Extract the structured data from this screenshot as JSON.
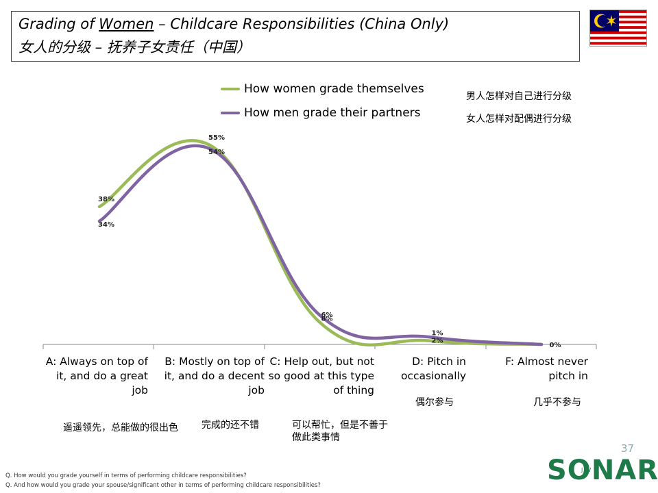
{
  "title": {
    "prefix": "Grading of ",
    "underlined": "Women",
    "suffix": " – Childcare Responsibilities (China Only)",
    "zh": "女人的分级 – 抚养子女责任（中国）"
  },
  "legend": [
    {
      "label": "How women grade themselves",
      "zh": "男人怎样对自己进行分级",
      "color": "#9bbb59"
    },
    {
      "label": "How men grade their partners",
      "zh": "女人怎样对配偶进行分级",
      "color": "#8064a2"
    }
  ],
  "category_zh": [
    "遥遥领先，总能做的很出色",
    "完成的还不错",
    "可以帮忙，但是不善于做此类事情",
    "偶尔参与",
    "几乎不参与"
  ],
  "chart_data": {
    "type": "line",
    "categories": [
      "A: Always on top of it, and do a great job",
      "B: Mostly on top of it, and do a decent job",
      "C: Help out, but not so good at this type of thing",
      "D: Pitch in occasionally",
      "F: Almost never pitch in"
    ],
    "series": [
      {
        "name": "How women grade themselves",
        "values": [
          38,
          55,
          6,
          1,
          0
        ],
        "labels": [
          "38%",
          "55%",
          "6%",
          "1%",
          "0%"
        ],
        "color": "#9bbb59"
      },
      {
        "name": "How men grade their partners",
        "values": [
          34,
          54,
          8,
          2,
          0
        ],
        "labels": [
          "34%",
          "54%",
          "8%",
          "2%",
          "0%"
        ],
        "color": "#8064a2"
      }
    ],
    "ylim": [
      0,
      58
    ]
  },
  "page_number": "37",
  "footnotes": [
    "Q. How would you grade yourself in terms of performing childcare responsibilities?",
    "Q. And how would you grade your spouse/significant other in terms of performing childcare responsibilities?"
  ],
  "logo": "SONAR",
  "logo_sub": "JWT"
}
